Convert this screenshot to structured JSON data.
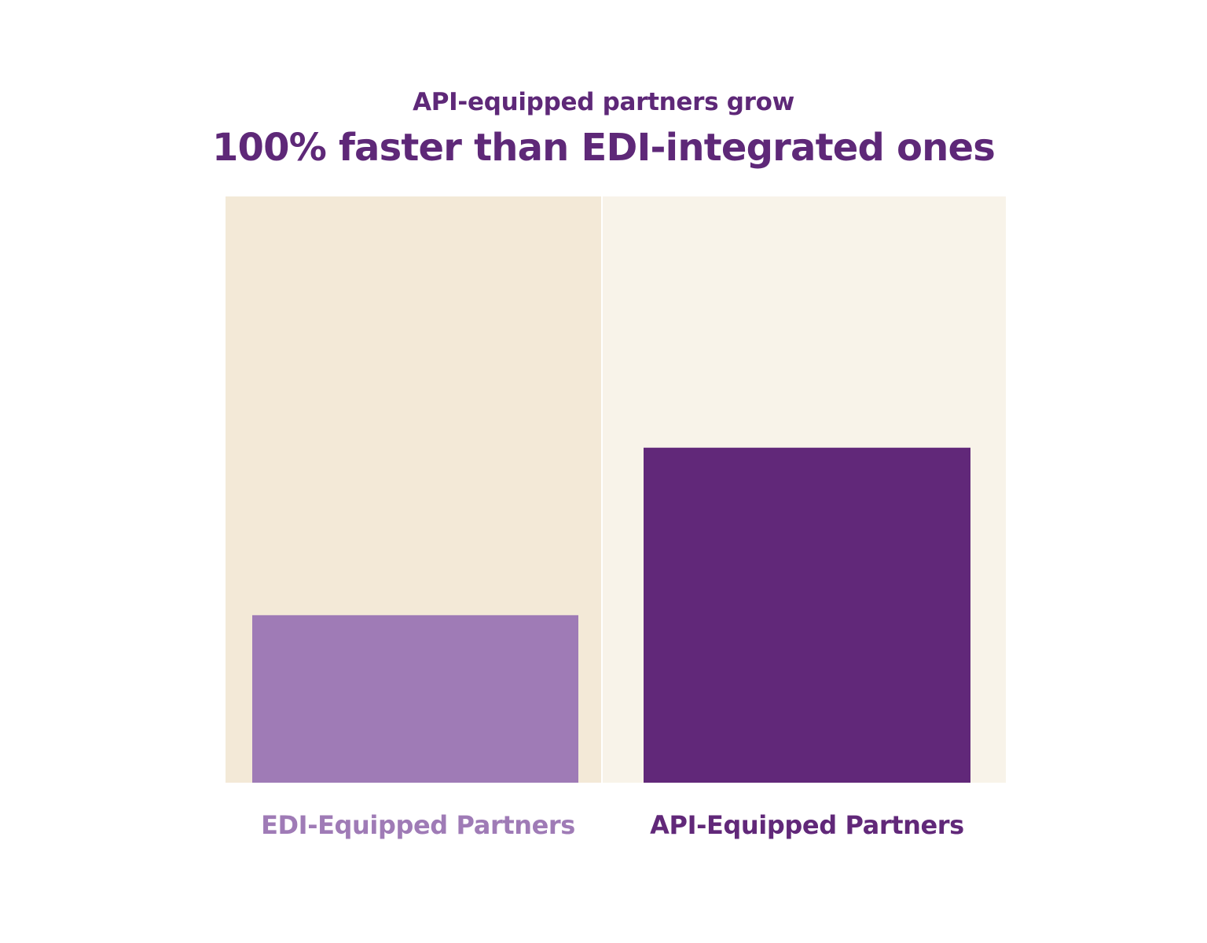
{
  "header": {
    "subtitle": "API-equipped partners grow",
    "title": "100% faster than EDI-integrated ones"
  },
  "colors": {
    "title": "#5e2878",
    "panel_left": "#f3e9d7",
    "panel_right": "#f8f3e9",
    "bar_edi": "#9f7bb6",
    "bar_api": "#612879"
  },
  "chart_data": {
    "type": "bar",
    "title": "100% faster than EDI-integrated ones",
    "subtitle": "API-equipped partners grow",
    "categories": [
      "EDI-Equipped Partners",
      "API-Equipped Partners"
    ],
    "values": [
      1,
      2
    ],
    "ylim": [
      0,
      3.5
    ],
    "grid": false,
    "legend": "none",
    "xlabel": "",
    "ylabel": ""
  }
}
